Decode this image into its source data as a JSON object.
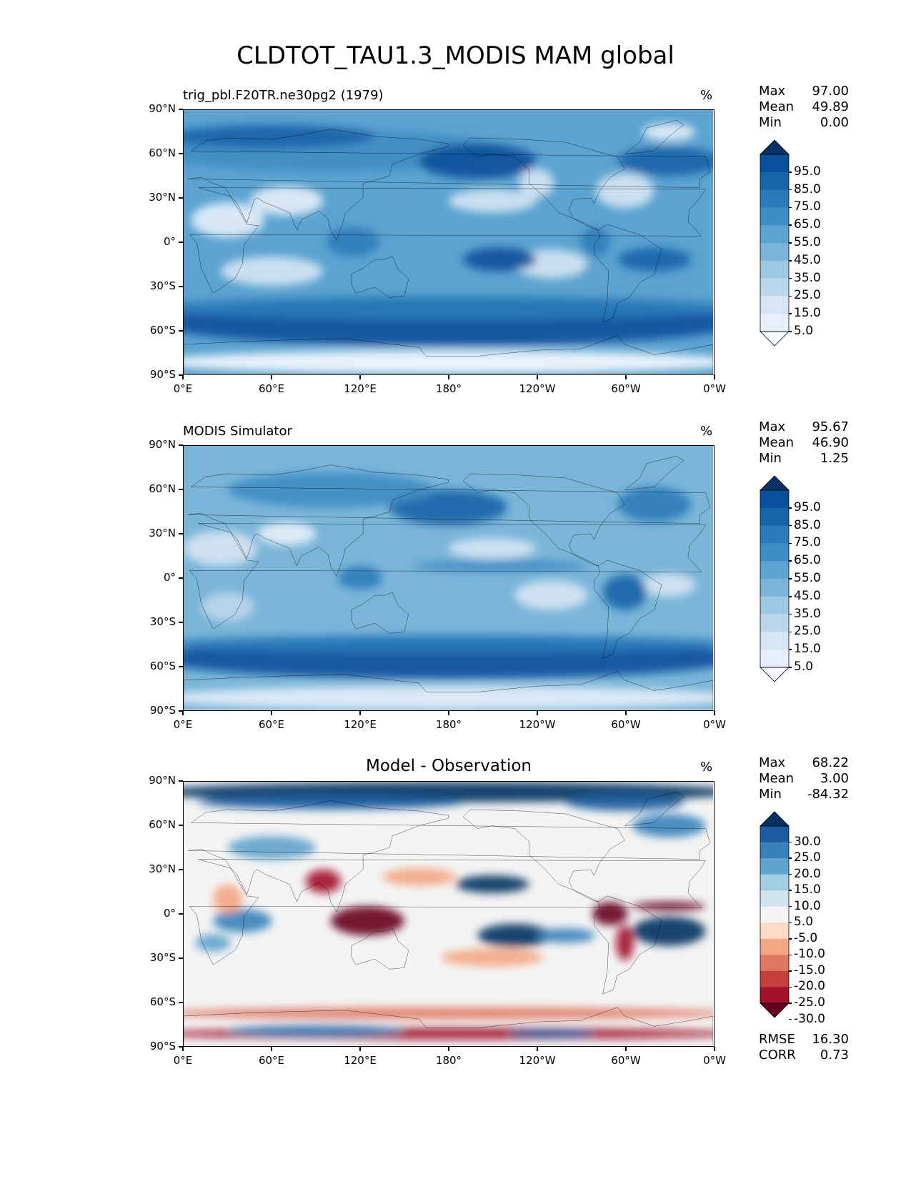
{
  "figure": {
    "title": "CLDTOT_TAU1.3_MODIS MAM global"
  },
  "axes": {
    "lat_ticks": [
      "90°N",
      "60°N",
      "30°N",
      "0°",
      "30°S",
      "60°S",
      "90°S"
    ],
    "lon_ticks": [
      "0°E",
      "60°E",
      "120°E",
      "180°",
      "120°W",
      "60°W",
      "0°W"
    ]
  },
  "panels": [
    {
      "id": "test",
      "title_left": "trig_pbl.F20TR.ne30pg2 (1979)",
      "title_center": "",
      "units": "%",
      "stats": [
        {
          "label": "Max",
          "value": "97.00"
        },
        {
          "label": "Mean",
          "value": "49.89"
        },
        {
          "label": "Min",
          "value": "0.00"
        }
      ],
      "colorbar": {
        "labels": [
          "95.0",
          "85.0",
          "75.0",
          "65.0",
          "55.0",
          "45.0",
          "35.0",
          "25.0",
          "15.0",
          "5.0"
        ],
        "colors": [
          "#08306b",
          "#08509b",
          "#1864aa",
          "#2b7bba",
          "#3d8dc4",
          "#5ba3d0",
          "#7ab5d9",
          "#9cc9e1",
          "#bcd7eb",
          "#d6e6f4",
          "#e6eff9",
          "#f7fbff"
        ]
      }
    },
    {
      "id": "reference",
      "title_left": "MODIS Simulator",
      "title_center": "",
      "units": "%",
      "stats": [
        {
          "label": "Max",
          "value": "95.67"
        },
        {
          "label": "Mean",
          "value": "46.90"
        },
        {
          "label": "Min",
          "value": "1.25"
        }
      ],
      "colorbar": {
        "labels": [
          "95.0",
          "85.0",
          "75.0",
          "65.0",
          "55.0",
          "45.0",
          "35.0",
          "25.0",
          "15.0",
          "5.0"
        ],
        "colors": [
          "#08306b",
          "#08509b",
          "#1864aa",
          "#2b7bba",
          "#3d8dc4",
          "#5ba3d0",
          "#7ab5d9",
          "#9cc9e1",
          "#bcd7eb",
          "#d6e6f4",
          "#e6eff9",
          "#f7fbff"
        ]
      }
    },
    {
      "id": "diff",
      "title_left": "",
      "title_center": "Model - Observation",
      "units": "%",
      "stats": [
        {
          "label": "Max",
          "value": "68.22"
        },
        {
          "label": "Mean",
          "value": "3.00"
        },
        {
          "label": "Min",
          "value": "-84.32"
        }
      ],
      "extra_stats": [
        {
          "label": "RMSE",
          "value": "16.30"
        },
        {
          "label": "CORR",
          "value": "0.73"
        }
      ],
      "colorbar": {
        "labels": [
          "30.0",
          "25.0",
          "20.0",
          "15.0",
          "10.0",
          "5.0",
          "-5.0",
          "-10.0",
          "-15.0",
          "-20.0",
          "-25.0",
          "-30.0"
        ],
        "colors": [
          "#053061",
          "#1c5c9e",
          "#3782bb",
          "#5fa2cc",
          "#a3cde3",
          "#d1e5f0",
          "#f4f4f4",
          "#fcdcc8",
          "#f4a582",
          "#e0775f",
          "#c53e3d",
          "#a11129",
          "#67001f"
        ]
      }
    }
  ]
}
